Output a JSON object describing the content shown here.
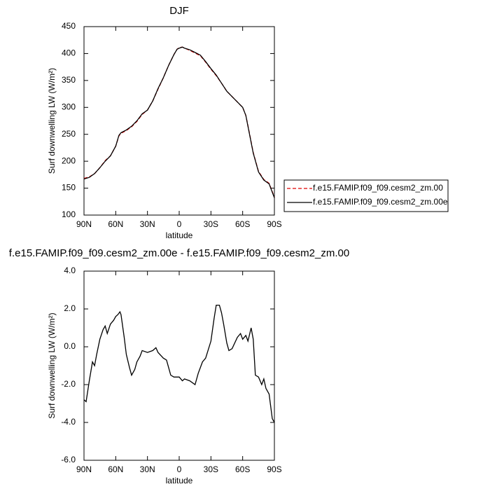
{
  "chart_data": [
    {
      "type": "line",
      "title": "DJF",
      "xlabel": "latitude",
      "ylabel": "Surf downwelling LW (W/m²)",
      "xlim": [
        90,
        -90
      ],
      "xticks": [
        {
          "value": 90,
          "label": "90N"
        },
        {
          "value": 60,
          "label": "60N"
        },
        {
          "value": 30,
          "label": "30N"
        },
        0,
        {
          "value": -30,
          "label": "30S"
        },
        {
          "value": -60,
          "label": "60S"
        },
        {
          "value": -90,
          "label": "90S"
        }
      ],
      "ylim": [
        100,
        450
      ],
      "yticks": [
        100,
        150,
        200,
        250,
        300,
        350,
        400,
        450
      ],
      "legend": "outside-right",
      "x": [
        90,
        85,
        80,
        75,
        70,
        65,
        60,
        57,
        55,
        50,
        45,
        40,
        35,
        30,
        25,
        20,
        15,
        10,
        5,
        2,
        0,
        -3,
        -5,
        -10,
        -15,
        -20,
        -25,
        -30,
        -35,
        -40,
        -45,
        -50,
        -55,
        -60,
        -63,
        -65,
        -70,
        -75,
        -80,
        -85,
        -90
      ],
      "series": [
        {
          "name": "f.e15.FAMIP.f09_f09.cesm2_zm.00",
          "color": "#e00000",
          "line_style": "dashed",
          "values": [
            168,
            171,
            177,
            188,
            201,
            210,
            228,
            247,
            252,
            257,
            264,
            274,
            287,
            295,
            312,
            334,
            355,
            378,
            398,
            408,
            411,
            412,
            410,
            406,
            401,
            396,
            384,
            371,
            359,
            345,
            330,
            320,
            310,
            300,
            285,
            266,
            216,
            181,
            166,
            159,
            133
          ]
        },
        {
          "name": "f.e15.FAMIP.f09_f09.cesm2_zm.00e",
          "color": "#000000",
          "line_style": "solid",
          "values": [
            167,
            170,
            177,
            188,
            200,
            210,
            228,
            248,
            253,
            258,
            265,
            275,
            288,
            295,
            312,
            335,
            355,
            378,
            398,
            408,
            410,
            412,
            410,
            407,
            402,
            397,
            385,
            372,
            360,
            345,
            330,
            320,
            310,
            300,
            285,
            265,
            215,
            180,
            165,
            158,
            132
          ]
        }
      ]
    },
    {
      "type": "line",
      "title": "f.e15.FAMIP.f09_f09.cesm2_zm.00e - f.e15.FAMIP.f09_f09.cesm2_zm.00",
      "xlabel": "latitude",
      "ylabel": "Surf downwelling LW (W/m²)",
      "xlim": [
        90,
        -90
      ],
      "xticks": [
        {
          "value": 90,
          "label": "90N"
        },
        {
          "value": 60,
          "label": "60N"
        },
        {
          "value": 30,
          "label": "30N"
        },
        0,
        {
          "value": -30,
          "label": "30S"
        },
        {
          "value": -60,
          "label": "60S"
        },
        {
          "value": -90,
          "label": "90S"
        }
      ],
      "ylim": [
        -6,
        4
      ],
      "yticks": [
        {
          "value": -6,
          "label": "-6.0"
        },
        {
          "value": -4,
          "label": "-4.0"
        },
        {
          "value": -2,
          "label": "-2.0"
        },
        {
          "value": 0,
          "label": "0.0"
        },
        {
          "value": 2,
          "label": "2.0"
        },
        {
          "value": 4,
          "label": "4.0"
        }
      ],
      "x": [
        90,
        88,
        85,
        82,
        80,
        78,
        75,
        72,
        70,
        68,
        65,
        62,
        60,
        58,
        56,
        55,
        52,
        50,
        47,
        45,
        42,
        40,
        37,
        35,
        30,
        25,
        22,
        20,
        15,
        12,
        10,
        8,
        5,
        0,
        -3,
        -5,
        -10,
        -15,
        -18,
        -22,
        -25,
        -30,
        -33,
        -35,
        -38,
        -40,
        -42,
        -45,
        -47,
        -50,
        -55,
        -58,
        -60,
        -63,
        -65,
        -68,
        -70,
        -72,
        -75,
        -78,
        -80,
        -82,
        -85,
        -88,
        -90
      ],
      "series": [
        {
          "color": "#000000",
          "line_style": "solid",
          "values": [
            -2.8,
            -2.9,
            -1.8,
            -0.8,
            -1.0,
            -0.4,
            0.4,
            0.9,
            1.1,
            0.7,
            1.2,
            1.4,
            1.6,
            1.7,
            1.85,
            1.7,
            0.5,
            -0.4,
            -1.1,
            -1.5,
            -1.2,
            -0.8,
            -0.5,
            -0.2,
            -0.3,
            -0.2,
            -0.05,
            -0.3,
            -0.6,
            -0.7,
            -1.1,
            -1.5,
            -1.6,
            -1.6,
            -1.8,
            -1.7,
            -1.8,
            -2.0,
            -1.4,
            -0.8,
            -0.6,
            0.3,
            1.5,
            2.2,
            2.2,
            1.8,
            1.2,
            0.2,
            -0.2,
            -0.1,
            0.5,
            0.7,
            0.4,
            0.6,
            0.3,
            1.0,
            0.4,
            -1.5,
            -1.6,
            -2.0,
            -1.7,
            -2.2,
            -2.5,
            -3.8,
            -4.0
          ]
        }
      ]
    }
  ]
}
